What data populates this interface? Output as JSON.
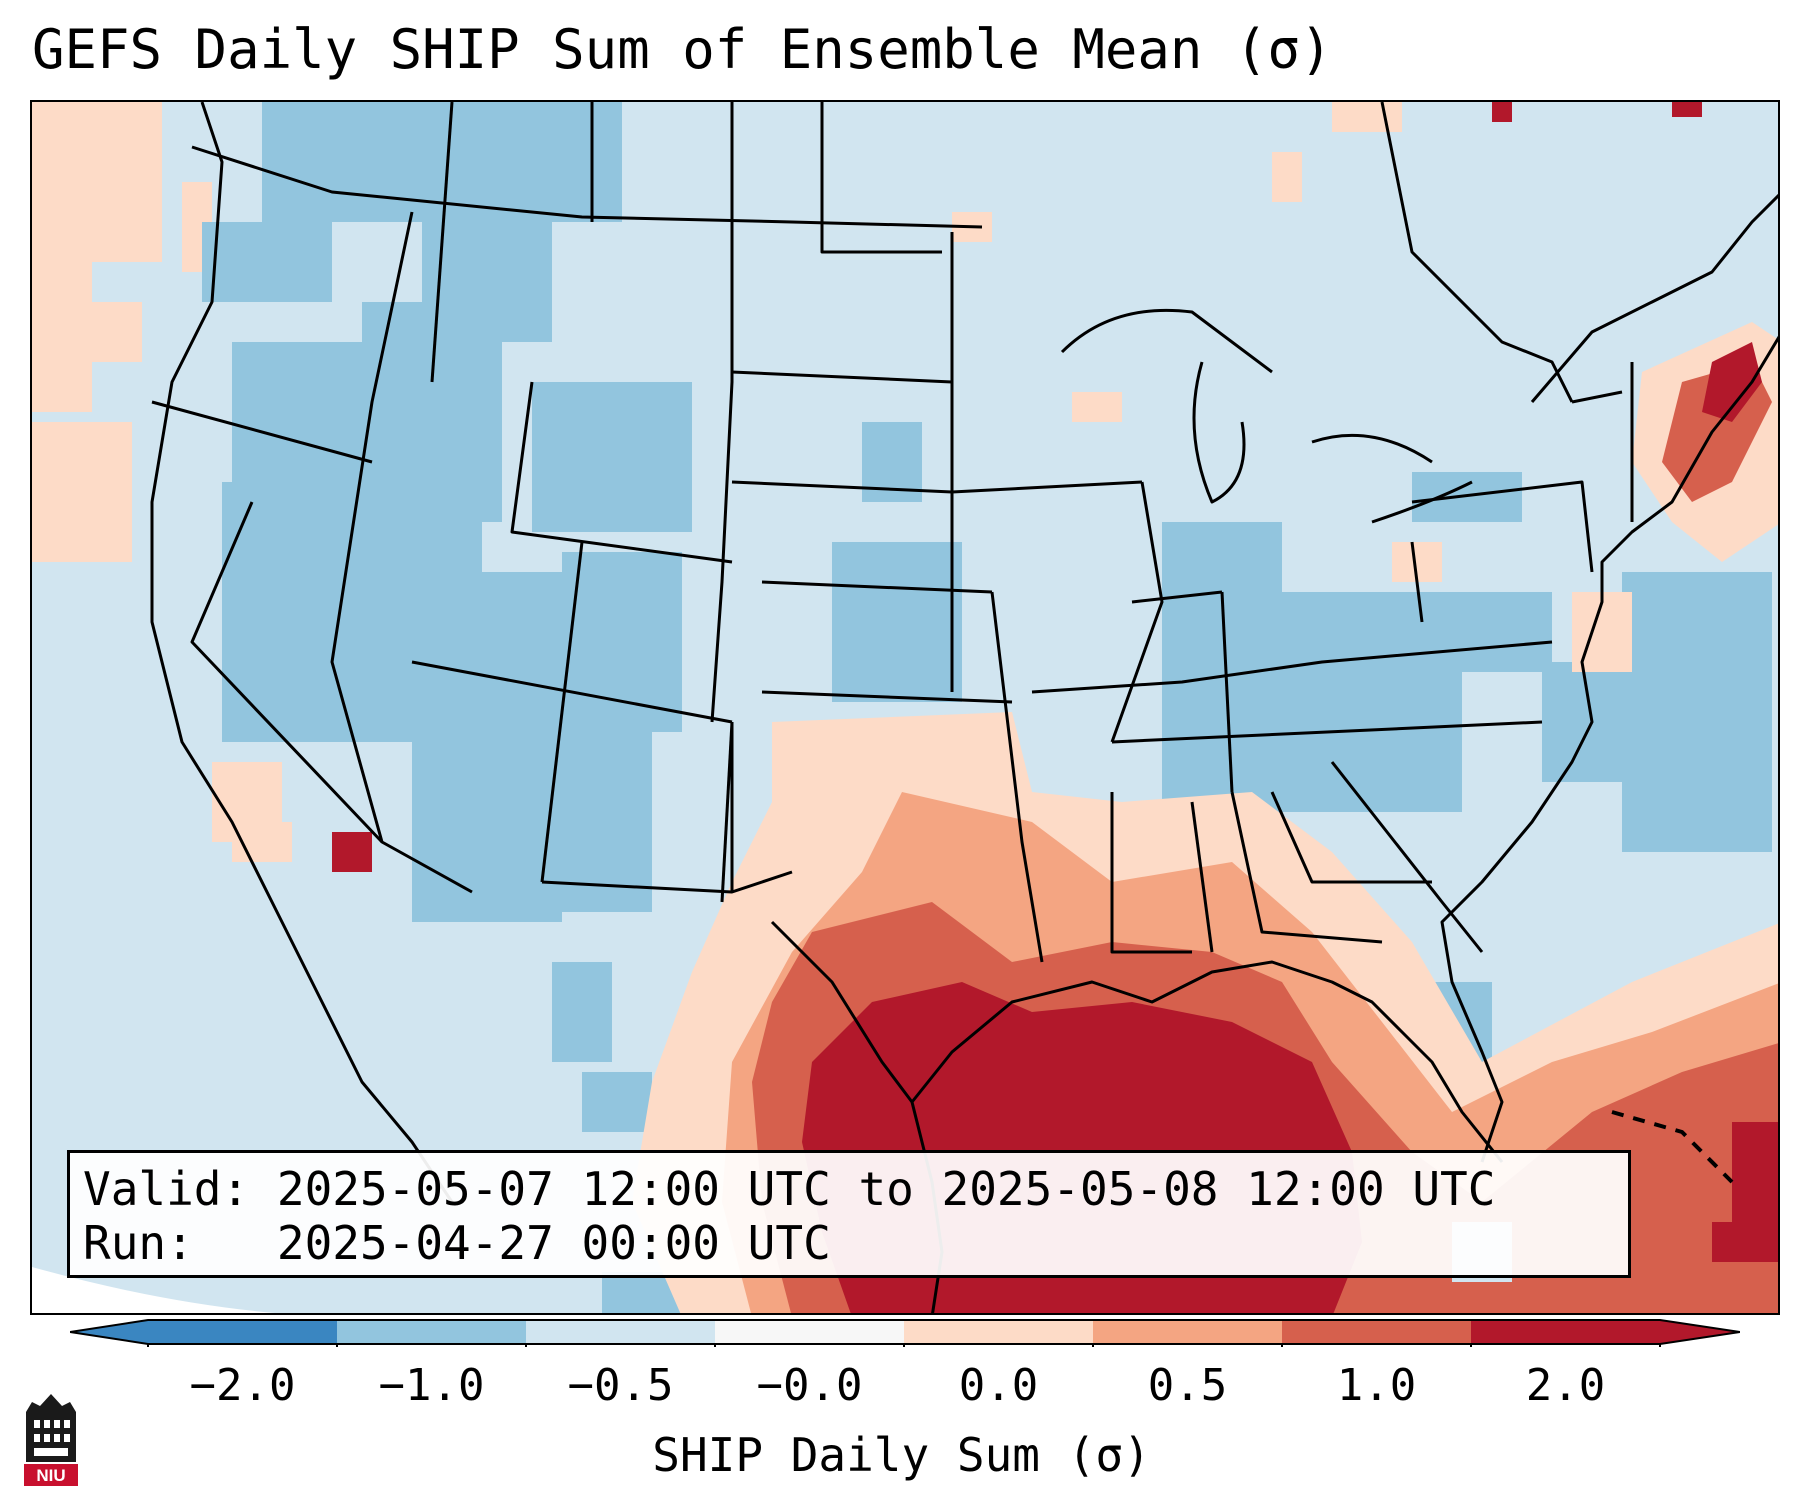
{
  "title": "GEFS Daily SHIP Sum of Ensemble Mean (σ)",
  "info_box": {
    "valid_label": "Valid:",
    "valid_value": "2025-05-07 12:00 UTC to 2025-05-08 12:00 UTC",
    "run_label": "Run:",
    "run_value": "2025-04-27 00:00 UTC"
  },
  "colorbar": {
    "label": "SHIP Daily Sum (σ)",
    "ticks": [
      "−2.0",
      "−1.0",
      "−0.5",
      "−0.0",
      "0.0",
      "0.5",
      "1.0",
      "2.0"
    ],
    "colors": [
      "#3a86c1",
      "#92c5de",
      "#d1e5f0",
      "#f7f7f7",
      "#fddbc7",
      "#f4a582",
      "#d6604d",
      "#b2182b"
    ],
    "extend": "both"
  },
  "map": {
    "region": "CONUS",
    "palette": {
      "dark_blue": "#92c5de",
      "light_blue": "#d1e5f0",
      "light_red": "#fddbc7",
      "mid_red": "#f4a582",
      "red": "#d6604d",
      "dark_red": "#b2182b"
    }
  },
  "logo": {
    "text": "NIU",
    "name": "niu-logo-icon"
  }
}
